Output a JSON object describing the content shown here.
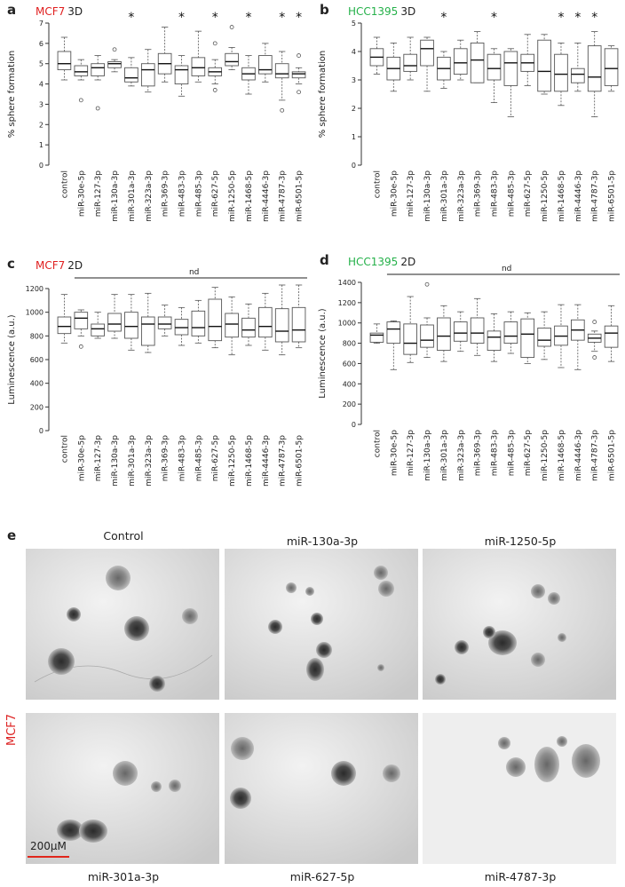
{
  "colors": {
    "mcf7": "#e02020",
    "hcc1395": "#25b14a",
    "box": "#555555"
  },
  "panels": {
    "a": {
      "letter": "a",
      "cell_line": "MCF7",
      "condition": "3D"
    },
    "b": {
      "letter": "b",
      "cell_line": "HCC1395",
      "condition": "3D"
    },
    "c": {
      "letter": "c",
      "cell_line": "MCF7",
      "condition": "2D",
      "nd": "nd"
    },
    "d": {
      "letter": "d",
      "cell_line": "HCC1395",
      "condition": "2D",
      "nd": "nd"
    },
    "e": {
      "letter": "e",
      "side_label": "MCF7",
      "scale": "200µM",
      "images": [
        {
          "label": "Control"
        },
        {
          "label": "miR-130a-3p"
        },
        {
          "label": "miR-1250-5p"
        },
        {
          "label": "miR-301a-3p"
        },
        {
          "label": "miR-627-5p"
        },
        {
          "label": "miR-4787-3p"
        }
      ]
    }
  },
  "chart_data": [
    {
      "type": "boxplot",
      "panel": "a",
      "ylabel": "% sphere formation",
      "ylim": [
        0,
        7
      ],
      "yticks": [
        0,
        1,
        2,
        3,
        4,
        5,
        6,
        7
      ],
      "categories": [
        "control",
        "miR-30e-5p",
        "miR-127-3p",
        "miR-130a-3p",
        "miR-301a-3p",
        "miR-323a-3p",
        "miR-369-3p",
        "miR-483-3p",
        "miR-485-3p",
        "miR-627-5p",
        "miR-1250-5p",
        "miR-1468-5p",
        "miR-4446-3p",
        "miR-4787-3p",
        "miR-6501-5p"
      ],
      "significant": [
        false,
        false,
        false,
        false,
        true,
        false,
        false,
        true,
        false,
        true,
        false,
        true,
        false,
        true,
        true
      ],
      "star": "*",
      "boxes": [
        {
          "min": 4.2,
          "q1": 4.7,
          "median": 5.0,
          "q3": 5.6,
          "max": 6.3,
          "outliers": []
        },
        {
          "min": 4.2,
          "q1": 4.4,
          "median": 4.6,
          "q3": 4.9,
          "max": 5.2,
          "outliers": [
            3.2
          ]
        },
        {
          "min": 4.2,
          "q1": 4.4,
          "median": 4.8,
          "q3": 5.0,
          "max": 5.4,
          "outliers": [
            2.8
          ]
        },
        {
          "min": 4.6,
          "q1": 4.8,
          "median": 5.0,
          "q3": 5.1,
          "max": 5.2,
          "outliers": [
            5.7
          ]
        },
        {
          "min": 3.9,
          "q1": 4.1,
          "median": 4.3,
          "q3": 4.8,
          "max": 5.3,
          "outliers": []
        },
        {
          "min": 3.6,
          "q1": 3.9,
          "median": 4.7,
          "q3": 5.0,
          "max": 5.7,
          "outliers": []
        },
        {
          "min": 4.1,
          "q1": 4.5,
          "median": 5.0,
          "q3": 5.5,
          "max": 6.8,
          "outliers": []
        },
        {
          "min": 3.4,
          "q1": 4.0,
          "median": 4.7,
          "q3": 4.9,
          "max": 5.4,
          "outliers": []
        },
        {
          "min": 4.1,
          "q1": 4.4,
          "median": 4.8,
          "q3": 5.3,
          "max": 6.6,
          "outliers": []
        },
        {
          "min": 4.0,
          "q1": 4.4,
          "median": 4.6,
          "q3": 4.8,
          "max": 5.2,
          "outliers": [
            6.0,
            3.7
          ]
        },
        {
          "min": 4.7,
          "q1": 4.9,
          "median": 5.1,
          "q3": 5.5,
          "max": 5.8,
          "outliers": [
            6.8
          ]
        },
        {
          "min": 3.5,
          "q1": 4.2,
          "median": 4.5,
          "q3": 4.8,
          "max": 5.4,
          "outliers": []
        },
        {
          "min": 4.1,
          "q1": 4.5,
          "median": 4.7,
          "q3": 5.4,
          "max": 6.0,
          "outliers": []
        },
        {
          "min": 3.2,
          "q1": 4.3,
          "median": 4.5,
          "q3": 5.0,
          "max": 5.6,
          "outliers": [
            2.7
          ]
        },
        {
          "min": 4.0,
          "q1": 4.3,
          "median": 4.5,
          "q3": 4.6,
          "max": 4.8,
          "outliers": [
            5.4,
            3.6
          ]
        }
      ]
    },
    {
      "type": "boxplot",
      "panel": "b",
      "ylabel": "% sphere formation",
      "ylim": [
        0,
        5
      ],
      "yticks": [
        0,
        1,
        2,
        3,
        4,
        5
      ],
      "categories": [
        "control",
        "miR-30e-5p",
        "miR-127-3p",
        "miR-130a-3p",
        "miR-301a-3p",
        "miR-323a-3p",
        "miR-369-3p",
        "miR-483-3p",
        "miR-485-3p",
        "miR-627-5p",
        "miR-1250-5p",
        "miR-1468-5p",
        "miR-4446-3p",
        "miR-4787-3p",
        "miR-6501-5p"
      ],
      "significant": [
        false,
        false,
        false,
        false,
        true,
        false,
        false,
        true,
        false,
        false,
        false,
        true,
        true,
        true,
        false
      ],
      "star": "*",
      "boxes": [
        {
          "min": 3.2,
          "q1": 3.5,
          "median": 3.8,
          "q3": 4.1,
          "max": 4.5,
          "outliers": []
        },
        {
          "min": 2.6,
          "q1": 3.0,
          "median": 3.4,
          "q3": 3.8,
          "max": 4.3,
          "outliers": []
        },
        {
          "min": 3.0,
          "q1": 3.3,
          "median": 3.5,
          "q3": 3.9,
          "max": 4.5,
          "outliers": []
        },
        {
          "min": 2.6,
          "q1": 3.5,
          "median": 4.1,
          "q3": 4.4,
          "max": 4.5,
          "outliers": []
        },
        {
          "min": 2.7,
          "q1": 3.0,
          "median": 3.4,
          "q3": 3.8,
          "max": 4.0,
          "outliers": []
        },
        {
          "min": 3.0,
          "q1": 3.2,
          "median": 3.6,
          "q3": 4.1,
          "max": 4.4,
          "outliers": []
        },
        {
          "min": 2.9,
          "q1": 2.9,
          "median": 3.7,
          "q3": 4.3,
          "max": 4.7,
          "outliers": []
        },
        {
          "min": 2.2,
          "q1": 3.0,
          "median": 3.4,
          "q3": 3.9,
          "max": 4.1,
          "outliers": []
        },
        {
          "min": 1.7,
          "q1": 2.8,
          "median": 3.6,
          "q3": 4.0,
          "max": 4.1,
          "outliers": []
        },
        {
          "min": 2.8,
          "q1": 3.3,
          "median": 3.6,
          "q3": 3.9,
          "max": 4.6,
          "outliers": []
        },
        {
          "min": 2.5,
          "q1": 2.6,
          "median": 3.3,
          "q3": 4.4,
          "max": 4.6,
          "outliers": []
        },
        {
          "min": 2.1,
          "q1": 2.6,
          "median": 3.2,
          "q3": 3.9,
          "max": 4.3,
          "outliers": []
        },
        {
          "min": 2.6,
          "q1": 2.9,
          "median": 3.2,
          "q3": 3.4,
          "max": 4.3,
          "outliers": []
        },
        {
          "min": 1.7,
          "q1": 2.6,
          "median": 3.1,
          "q3": 4.2,
          "max": 4.7,
          "outliers": []
        },
        {
          "min": 2.6,
          "q1": 2.8,
          "median": 3.4,
          "q3": 4.1,
          "max": 4.2,
          "outliers": []
        }
      ]
    },
    {
      "type": "boxplot",
      "panel": "c",
      "ylabel": "Luminescence (a.u.)",
      "ylim": [
        0,
        1200
      ],
      "yticks": [
        0,
        200,
        400,
        600,
        800,
        1000,
        1200
      ],
      "categories": [
        "control",
        "miR-30e-5p",
        "miR-127-3p",
        "miR-130a-3p",
        "miR-301a-3p",
        "miR-323a-3p",
        "miR-369-3p",
        "miR-483-3p",
        "miR-485-3p",
        "miR-627-5p",
        "miR-1250-5p",
        "miR-1468-5p",
        "miR-4446-3p",
        "miR-4787-3p",
        "miR-6501-5p"
      ],
      "boxes": [
        {
          "min": 740,
          "q1": 820,
          "median": 880,
          "q3": 960,
          "max": 1150,
          "outliers": []
        },
        {
          "min": 800,
          "q1": 860,
          "median": 950,
          "q3": 1000,
          "max": 1020,
          "outliers": [
            710
          ]
        },
        {
          "min": 780,
          "q1": 800,
          "median": 860,
          "q3": 900,
          "max": 1000,
          "outliers": []
        },
        {
          "min": 780,
          "q1": 840,
          "median": 900,
          "q3": 990,
          "max": 1150,
          "outliers": []
        },
        {
          "min": 680,
          "q1": 780,
          "median": 880,
          "q3": 1000,
          "max": 1150,
          "outliers": []
        },
        {
          "min": 660,
          "q1": 720,
          "median": 900,
          "q3": 960,
          "max": 1160,
          "outliers": []
        },
        {
          "min": 800,
          "q1": 860,
          "median": 900,
          "q3": 960,
          "max": 1060,
          "outliers": []
        },
        {
          "min": 720,
          "q1": 810,
          "median": 870,
          "q3": 940,
          "max": 1040,
          "outliers": []
        },
        {
          "min": 740,
          "q1": 800,
          "median": 870,
          "q3": 1010,
          "max": 1100,
          "outliers": []
        },
        {
          "min": 700,
          "q1": 760,
          "median": 880,
          "q3": 1110,
          "max": 1210,
          "outliers": []
        },
        {
          "min": 640,
          "q1": 790,
          "median": 900,
          "q3": 990,
          "max": 1130,
          "outliers": []
        },
        {
          "min": 720,
          "q1": 790,
          "median": 850,
          "q3": 950,
          "max": 1070,
          "outliers": []
        },
        {
          "min": 680,
          "q1": 790,
          "median": 880,
          "q3": 1040,
          "max": 1160,
          "outliers": []
        },
        {
          "min": 640,
          "q1": 750,
          "median": 840,
          "q3": 1030,
          "max": 1230,
          "outliers": []
        },
        {
          "min": 700,
          "q1": 750,
          "median": 850,
          "q3": 1040,
          "max": 1230,
          "outliers": []
        }
      ]
    },
    {
      "type": "boxplot",
      "panel": "d",
      "ylabel": "Luminescence (a.u.)",
      "ylim": [
        0,
        1400
      ],
      "yticks": [
        0,
        200,
        400,
        600,
        800,
        1000,
        1200,
        1400
      ],
      "categories": [
        "control",
        "miR-30e-5p",
        "miR-127-3p",
        "miR-130a-3p",
        "miR-301a-3p",
        "miR-323a-3p",
        "miR-369-3p",
        "miR-483-3p",
        "miR-485-3p",
        "miR-627-5p",
        "miR-1250-5p",
        "miR-1468-5p",
        "miR-4446-3p",
        "miR-4787-3p",
        "miR-6501-5p"
      ],
      "boxes": [
        {
          "min": 800,
          "q1": 810,
          "median": 880,
          "q3": 900,
          "max": 990,
          "outliers": []
        },
        {
          "min": 540,
          "q1": 800,
          "median": 940,
          "q3": 1010,
          "max": 1020,
          "outliers": []
        },
        {
          "min": 610,
          "q1": 690,
          "median": 800,
          "q3": 990,
          "max": 1260,
          "outliers": []
        },
        {
          "min": 660,
          "q1": 760,
          "median": 830,
          "q3": 980,
          "max": 1050,
          "outliers": [
            1380
          ]
        },
        {
          "min": 620,
          "q1": 730,
          "median": 870,
          "q3": 1050,
          "max": 1170,
          "outliers": []
        },
        {
          "min": 720,
          "q1": 820,
          "median": 900,
          "q3": 1010,
          "max": 1110,
          "outliers": []
        },
        {
          "min": 680,
          "q1": 800,
          "median": 900,
          "q3": 1050,
          "max": 1240,
          "outliers": []
        },
        {
          "min": 620,
          "q1": 730,
          "median": 860,
          "q3": 920,
          "max": 1090,
          "outliers": []
        },
        {
          "min": 700,
          "q1": 800,
          "median": 870,
          "q3": 1010,
          "max": 1110,
          "outliers": []
        },
        {
          "min": 600,
          "q1": 660,
          "median": 890,
          "q3": 1040,
          "max": 1100,
          "outliers": []
        },
        {
          "min": 640,
          "q1": 770,
          "median": 830,
          "q3": 950,
          "max": 1110,
          "outliers": []
        },
        {
          "min": 560,
          "q1": 780,
          "median": 870,
          "q3": 970,
          "max": 1180,
          "outliers": []
        },
        {
          "min": 540,
          "q1": 830,
          "median": 930,
          "q3": 1030,
          "max": 1180,
          "outliers": []
        },
        {
          "min": 720,
          "q1": 810,
          "median": 850,
          "q3": 890,
          "max": 920,
          "outliers": [
            660,
            1010
          ]
        },
        {
          "min": 620,
          "q1": 760,
          "median": 900,
          "q3": 970,
          "max": 1170,
          "outliers": []
        }
      ]
    }
  ]
}
